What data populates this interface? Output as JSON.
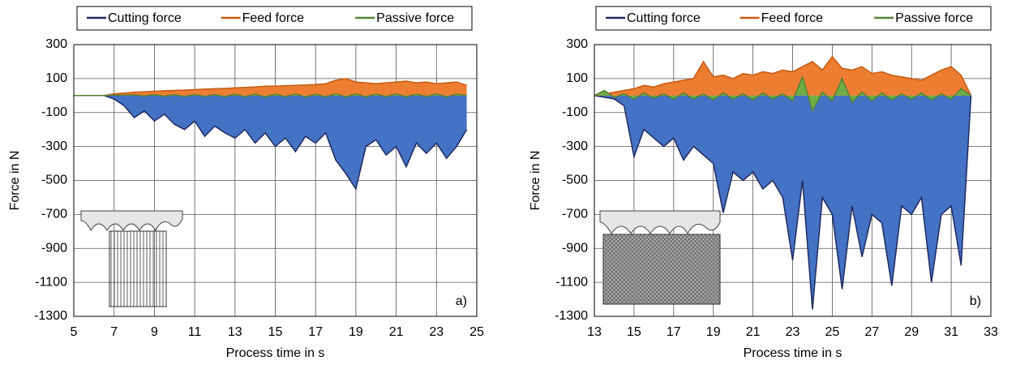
{
  "chart_data": [
    {
      "type": "line",
      "label": "a)",
      "x_label": "Process time in s",
      "y_label": "Force in N",
      "xlim": [
        5,
        25
      ],
      "xticks": [
        5,
        7,
        9,
        11,
        13,
        15,
        17,
        19,
        21,
        23,
        25
      ],
      "ylim": [
        -1300,
        300
      ],
      "yticks": [
        -1300,
        -1100,
        -900,
        -700,
        -500,
        -300,
        -100,
        100,
        300
      ],
      "grid": true,
      "x": [
        5,
        5.5,
        6,
        6.5,
        7,
        7.5,
        8,
        8.5,
        9,
        9.5,
        10,
        10.5,
        11,
        11.5,
        12,
        12.5,
        13,
        13.5,
        14,
        14.5,
        15,
        15.5,
        16,
        16.5,
        17,
        17.5,
        18,
        18.5,
        19,
        19.5,
        20,
        20.5,
        21,
        21.5,
        22,
        22.5,
        23,
        23.5,
        24,
        24.5
      ],
      "series": [
        {
          "name": "Cutting force",
          "color": "#1f2a60",
          "fill": "#4472c4",
          "values": [
            0,
            0,
            0,
            0,
            -20,
            -60,
            -130,
            -90,
            -150,
            -110,
            -170,
            -200,
            -150,
            -240,
            -180,
            -220,
            -250,
            -200,
            -280,
            -220,
            -300,
            -250,
            -330,
            -240,
            -280,
            -220,
            -380,
            -460,
            -550,
            -300,
            -260,
            -350,
            -300,
            -420,
            -280,
            -340,
            -280,
            -370,
            -300,
            -200
          ]
        },
        {
          "name": "Feed force",
          "color": "#c55a11",
          "fill": "#ed7d31",
          "values": [
            0,
            0,
            0,
            0,
            10,
            15,
            20,
            22,
            25,
            28,
            30,
            32,
            35,
            38,
            40,
            42,
            45,
            48,
            50,
            55,
            55,
            58,
            60,
            62,
            65,
            70,
            90,
            100,
            80,
            75,
            70,
            75,
            80,
            85,
            75,
            80,
            70,
            75,
            80,
            60
          ]
        },
        {
          "name": "Passive force",
          "color": "#548235",
          "fill": "#70ad47",
          "values": [
            0,
            0,
            0,
            0,
            2,
            3,
            4,
            -3,
            5,
            -4,
            5,
            -5,
            6,
            -5,
            6,
            -6,
            7,
            -6,
            8,
            -7,
            8,
            -6,
            9,
            -8,
            8,
            -7,
            10,
            -8,
            9,
            -7,
            8,
            -6,
            9,
            -7,
            8,
            -6,
            9,
            -7,
            8,
            0
          ]
        }
      ]
    },
    {
      "type": "line",
      "label": "b)",
      "x_label": "Process time in s",
      "y_label": "Force in N",
      "xlim": [
        13,
        33
      ],
      "xticks": [
        13,
        15,
        17,
        19,
        21,
        23,
        25,
        27,
        29,
        31,
        33
      ],
      "ylim": [
        -1300,
        300
      ],
      "yticks": [
        -1300,
        -1100,
        -900,
        -700,
        -500,
        -300,
        -100,
        100,
        300
      ],
      "grid": true,
      "x": [
        13,
        13.5,
        14,
        14.5,
        15,
        15.5,
        16,
        16.5,
        17,
        17.5,
        18,
        18.5,
        19,
        19.5,
        20,
        20.5,
        21,
        21.5,
        22,
        22.5,
        23,
        23.5,
        24,
        24.5,
        25,
        25.5,
        26,
        26.5,
        27,
        27.5,
        28,
        28.5,
        29,
        29.5,
        30,
        30.5,
        31,
        31.5,
        32
      ],
      "series": [
        {
          "name": "Cutting force",
          "color": "#1f2a60",
          "fill": "#4472c4",
          "values": [
            0,
            -10,
            -20,
            -60,
            -360,
            -200,
            -250,
            -300,
            -250,
            -380,
            -300,
            -350,
            -400,
            -690,
            -450,
            -500,
            -450,
            -550,
            -500,
            -600,
            -970,
            -500,
            -1260,
            -600,
            -700,
            -1140,
            -650,
            -950,
            -700,
            -750,
            -1120,
            -650,
            -700,
            -600,
            -1100,
            -700,
            -650,
            -1000,
            0
          ]
        },
        {
          "name": "Feed force",
          "color": "#c55a11",
          "fill": "#ed7d31",
          "values": [
            0,
            10,
            20,
            30,
            40,
            60,
            50,
            70,
            80,
            90,
            100,
            200,
            110,
            120,
            100,
            130,
            120,
            140,
            130,
            150,
            140,
            170,
            200,
            150,
            230,
            160,
            150,
            170,
            130,
            140,
            120,
            110,
            100,
            90,
            120,
            150,
            170,
            120,
            0
          ]
        },
        {
          "name": "Passive force",
          "color": "#548235",
          "fill": "#70ad47",
          "values": [
            0,
            30,
            -10,
            10,
            -20,
            15,
            -15,
            10,
            -20,
            15,
            -20,
            10,
            -25,
            15,
            -20,
            10,
            -25,
            15,
            -20,
            10,
            -30,
            110,
            -90,
            20,
            -30,
            100,
            -40,
            20,
            -30,
            15,
            -25,
            10,
            -20,
            15,
            -25,
            10,
            -20,
            40,
            0
          ]
        }
      ]
    }
  ]
}
